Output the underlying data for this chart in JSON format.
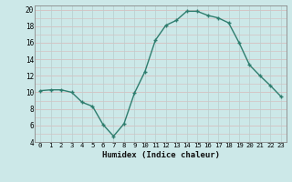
{
  "x": [
    0,
    1,
    2,
    3,
    4,
    5,
    6,
    7,
    8,
    9,
    10,
    11,
    12,
    13,
    14,
    15,
    16,
    17,
    18,
    19,
    20,
    21,
    22,
    23
  ],
  "y": [
    10.2,
    10.3,
    10.3,
    10.0,
    8.8,
    8.3,
    6.1,
    4.7,
    6.2,
    9.9,
    12.5,
    16.3,
    18.1,
    18.7,
    19.8,
    19.8,
    19.3,
    19.0,
    18.4,
    16.0,
    13.3,
    12.0,
    10.8,
    9.5
  ],
  "line_color": "#2e7d6e",
  "marker": "+",
  "marker_size": 3,
  "xlabel": "Humidex (Indice chaleur)",
  "xlim": [
    -0.5,
    23.5
  ],
  "ylim": [
    4,
    20.5
  ],
  "yticks": [
    4,
    6,
    8,
    10,
    12,
    14,
    16,
    18,
    20
  ],
  "xticks": [
    0,
    1,
    2,
    3,
    4,
    5,
    6,
    7,
    8,
    9,
    10,
    11,
    12,
    13,
    14,
    15,
    16,
    17,
    18,
    19,
    20,
    21,
    22,
    23
  ],
  "bg_color": "#cce8e8",
  "hgrid_color": "#d8b8b8",
  "vgrid_color": "#b8cece",
  "line_width": 1.0
}
